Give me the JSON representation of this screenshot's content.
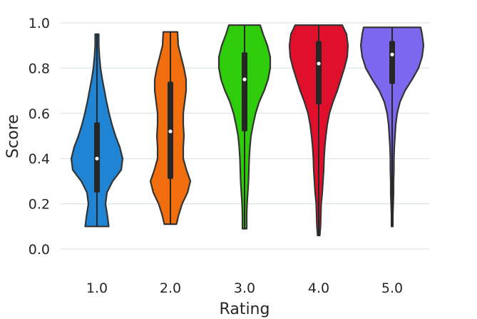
{
  "chart_data": {
    "type": "violin",
    "xlabel": "Rating",
    "ylabel": "Score",
    "ylim": [
      0.0,
      1.0
    ],
    "yticks": [
      "0.0",
      "0.2",
      "0.4",
      "0.6",
      "0.8",
      "1.0"
    ],
    "grid": "horizontal",
    "categories": [
      "1.0",
      "2.0",
      "3.0",
      "4.0",
      "5.0"
    ],
    "colors": [
      "#1f84d3",
      "#f16e0f",
      "#2ecc0a",
      "#e0102c",
      "#7b68ee"
    ],
    "series": [
      {
        "category": "1.0",
        "min": 0.1,
        "max": 0.95,
        "q1": 0.25,
        "median": 0.4,
        "q3": 0.56,
        "profile": [
          [
            0.1,
            0.33
          ],
          [
            0.15,
            0.29
          ],
          [
            0.2,
            0.24
          ],
          [
            0.25,
            0.28
          ],
          [
            0.3,
            0.44
          ],
          [
            0.35,
            0.68
          ],
          [
            0.4,
            0.72
          ],
          [
            0.45,
            0.64
          ],
          [
            0.5,
            0.52
          ],
          [
            0.55,
            0.42
          ],
          [
            0.6,
            0.34
          ],
          [
            0.65,
            0.27
          ],
          [
            0.7,
            0.21
          ],
          [
            0.75,
            0.15
          ],
          [
            0.8,
            0.1
          ],
          [
            0.85,
            0.07
          ],
          [
            0.9,
            0.05
          ],
          [
            0.95,
            0.05
          ]
        ]
      },
      {
        "category": "2.0",
        "min": 0.11,
        "max": 0.96,
        "q1": 0.31,
        "median": 0.52,
        "q3": 0.74,
        "profile": [
          [
            0.11,
            0.17
          ],
          [
            0.15,
            0.23
          ],
          [
            0.2,
            0.33
          ],
          [
            0.25,
            0.48
          ],
          [
            0.3,
            0.56
          ],
          [
            0.35,
            0.45
          ],
          [
            0.4,
            0.36
          ],
          [
            0.45,
            0.36
          ],
          [
            0.5,
            0.38
          ],
          [
            0.55,
            0.36
          ],
          [
            0.6,
            0.36
          ],
          [
            0.65,
            0.4
          ],
          [
            0.7,
            0.44
          ],
          [
            0.75,
            0.44
          ],
          [
            0.8,
            0.38
          ],
          [
            0.85,
            0.3
          ],
          [
            0.9,
            0.22
          ],
          [
            0.96,
            0.2
          ]
        ]
      },
      {
        "category": "3.0",
        "min": 0.09,
        "max": 0.99,
        "q1": 0.52,
        "median": 0.75,
        "q3": 0.87,
        "profile": [
          [
            0.09,
            0.06
          ],
          [
            0.15,
            0.06
          ],
          [
            0.2,
            0.07
          ],
          [
            0.25,
            0.09
          ],
          [
            0.3,
            0.11
          ],
          [
            0.35,
            0.12
          ],
          [
            0.4,
            0.13
          ],
          [
            0.45,
            0.15
          ],
          [
            0.5,
            0.18
          ],
          [
            0.55,
            0.24
          ],
          [
            0.6,
            0.31
          ],
          [
            0.65,
            0.41
          ],
          [
            0.7,
            0.55
          ],
          [
            0.75,
            0.66
          ],
          [
            0.8,
            0.72
          ],
          [
            0.85,
            0.72
          ],
          [
            0.9,
            0.64
          ],
          [
            0.95,
            0.52
          ],
          [
            0.99,
            0.44
          ]
        ]
      },
      {
        "category": "4.0",
        "min": 0.06,
        "max": 0.99,
        "q1": 0.64,
        "median": 0.82,
        "q3": 0.92,
        "profile": [
          [
            0.06,
            0.03
          ],
          [
            0.1,
            0.05
          ],
          [
            0.15,
            0.06
          ],
          [
            0.2,
            0.07
          ],
          [
            0.25,
            0.1
          ],
          [
            0.3,
            0.12
          ],
          [
            0.35,
            0.14
          ],
          [
            0.4,
            0.15
          ],
          [
            0.45,
            0.17
          ],
          [
            0.5,
            0.2
          ],
          [
            0.55,
            0.24
          ],
          [
            0.6,
            0.3
          ],
          [
            0.65,
            0.4
          ],
          [
            0.7,
            0.52
          ],
          [
            0.75,
            0.62
          ],
          [
            0.8,
            0.72
          ],
          [
            0.85,
            0.8
          ],
          [
            0.9,
            0.82
          ],
          [
            0.95,
            0.78
          ],
          [
            0.99,
            0.66
          ]
        ]
      },
      {
        "category": "5.0",
        "min": 0.1,
        "max": 0.98,
        "q1": 0.73,
        "median": 0.86,
        "q3": 0.92,
        "profile": [
          [
            0.1,
            0.02
          ],
          [
            0.15,
            0.02
          ],
          [
            0.2,
            0.03
          ],
          [
            0.25,
            0.04
          ],
          [
            0.3,
            0.04
          ],
          [
            0.35,
            0.05
          ],
          [
            0.4,
            0.05
          ],
          [
            0.45,
            0.06
          ],
          [
            0.5,
            0.08
          ],
          [
            0.55,
            0.1
          ],
          [
            0.6,
            0.14
          ],
          [
            0.65,
            0.22
          ],
          [
            0.7,
            0.36
          ],
          [
            0.75,
            0.56
          ],
          [
            0.8,
            0.74
          ],
          [
            0.85,
            0.84
          ],
          [
            0.9,
            0.88
          ],
          [
            0.95,
            0.84
          ],
          [
            0.98,
            0.8
          ]
        ]
      }
    ]
  }
}
